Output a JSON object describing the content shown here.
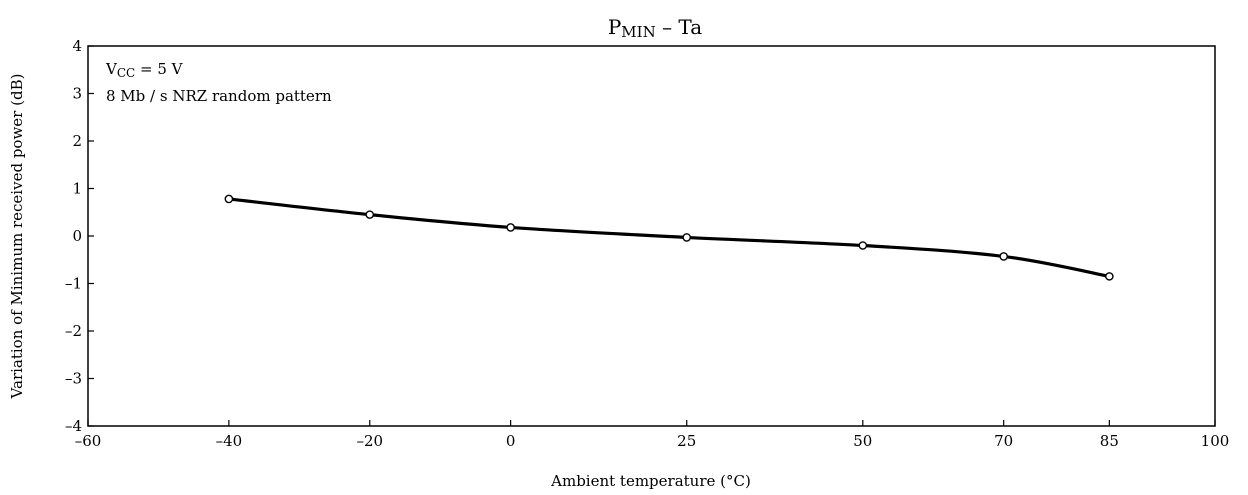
{
  "chart_data": {
    "type": "line",
    "title_main": "P",
    "title_sub": "MIN",
    "title_rest": " – Ta",
    "xlabel": "Ambient temperature   (°C)",
    "ylabel": "Variation of Minimum received power   (dB)",
    "xlim": [
      -60,
      100
    ],
    "ylim": [
      -4,
      4
    ],
    "xticks": [
      -60,
      -40,
      -20,
      0,
      25,
      50,
      70,
      85,
      100
    ],
    "xtick_labels": [
      "–60",
      "–40",
      "–20",
      "0",
      "25",
      "50",
      "70",
      "85",
      "100"
    ],
    "yticks": [
      4,
      3,
      2,
      1,
      0,
      -1,
      -2,
      -3,
      -4
    ],
    "ytick_labels": [
      "4",
      "3",
      "2",
      "1",
      "0",
      "–1",
      "–2",
      "–3",
      "–4"
    ],
    "grid": false,
    "conditions": {
      "line1_main": "V",
      "line1_sub": "CC",
      "line1_rest": " = 5 V",
      "line2": "8 Mb / s NRZ random pattern"
    },
    "series": [
      {
        "x": [
          -40,
          -20,
          0,
          25,
          50,
          70,
          85
        ],
        "y": [
          0.78,
          0.45,
          0.18,
          -0.03,
          -0.2,
          -0.43,
          -0.85
        ]
      }
    ],
    "line_color": "#000000",
    "marker_fill": "#ffffff"
  }
}
